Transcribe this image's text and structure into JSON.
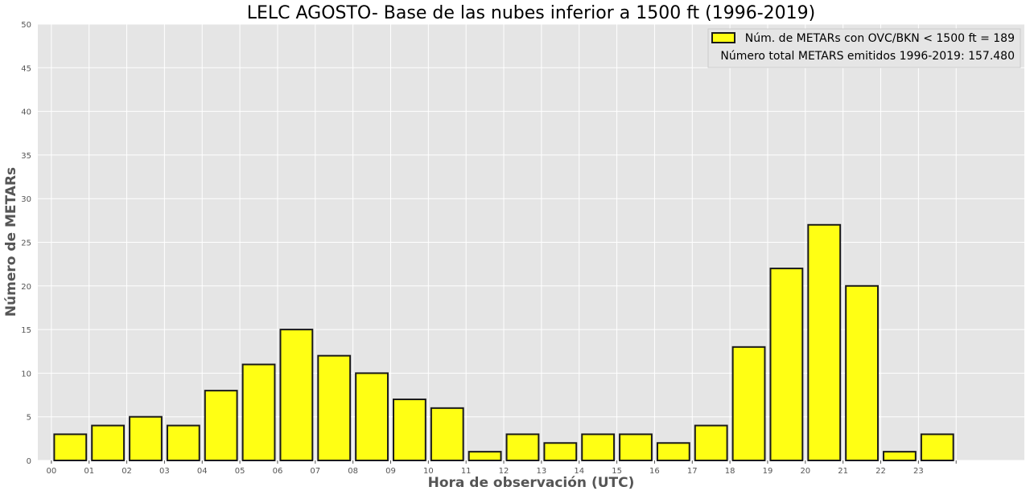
{
  "chart_data": {
    "type": "bar",
    "title": "LELC AGOSTO- Base de las nubes inferior a 1500 ft (1996-2019)",
    "xlabel": "Hora de observación (UTC)",
    "ylabel": "Número de METARs",
    "ylim": [
      0,
      50
    ],
    "yticks": [
      0,
      5,
      10,
      15,
      20,
      25,
      30,
      35,
      40,
      45,
      50
    ],
    "categories": [
      "00",
      "01",
      "02",
      "03",
      "04",
      "05",
      "06",
      "07",
      "08",
      "09",
      "10",
      "11",
      "12",
      "13",
      "14",
      "15",
      "16",
      "17",
      "18",
      "19",
      "20",
      "21",
      "22",
      "23"
    ],
    "values": [
      3,
      4,
      5,
      4,
      8,
      11,
      15,
      12,
      10,
      7,
      6,
      1,
      3,
      2,
      3,
      3,
      2,
      4,
      13,
      22,
      27,
      20,
      1,
      3
    ],
    "series_label": "Núm. de METARs con OVC/BKN < 1500 ft = 189",
    "legend_note": "Número total METARS emitidos 1996-2019: 157.480",
    "legend_position": "top-right",
    "grid": true,
    "colors": {
      "bar_fill": "#ffff14",
      "bar_edge": "#1a1a1a",
      "plot_background": "#e5e5e5",
      "grid": "#ffffff"
    }
  }
}
